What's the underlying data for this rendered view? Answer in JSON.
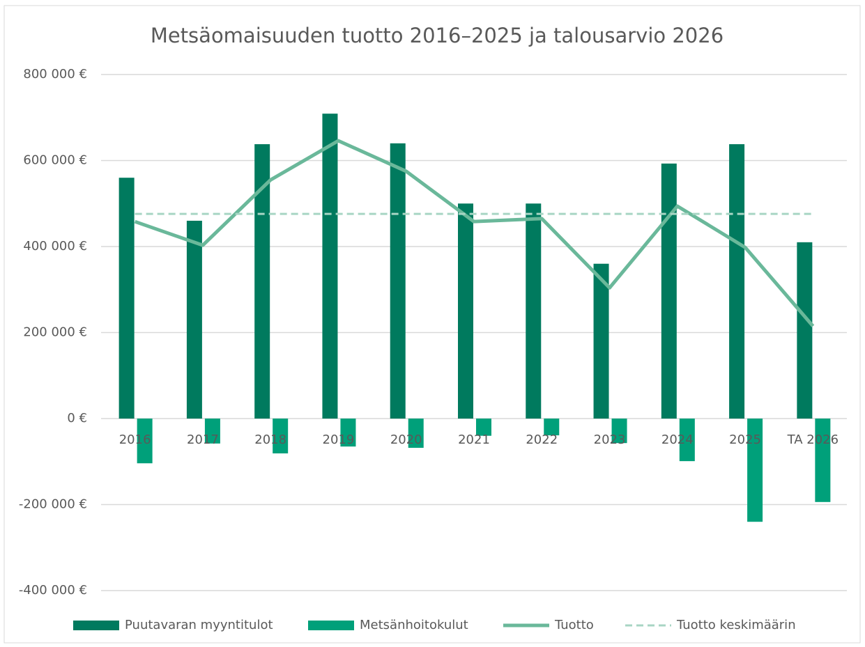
{
  "chart_data": {
    "type": "combo",
    "title": "Metsäomaisuuden tuotto 2016–2025 ja talousarvio 2026",
    "categories": [
      "2016",
      "2017",
      "2018",
      "2019",
      "2020",
      "2021",
      "2022",
      "2023",
      "2024",
      "2025",
      "TA 2026"
    ],
    "series": [
      {
        "name": "Puutavaran myyntitulot",
        "type": "bar",
        "color": "#007a5e",
        "values": [
          560000,
          460000,
          638000,
          709000,
          640000,
          500000,
          500000,
          360000,
          593000,
          638000,
          410000
        ]
      },
      {
        "name": "Metsänhoitokulut",
        "type": "bar",
        "color": "#00a07a",
        "values": [
          -104000,
          -58000,
          -81000,
          -65000,
          -68000,
          -40000,
          -39000,
          -57000,
          -99000,
          -240000,
          -194000
        ]
      },
      {
        "name": "Tuotto",
        "type": "line",
        "color": "#6ab89a",
        "values": [
          458000,
          403000,
          555000,
          646000,
          575000,
          458000,
          465000,
          304000,
          494000,
          398000,
          215000
        ]
      },
      {
        "name": "Tuotto keskimäärin",
        "type": "line",
        "dashed": true,
        "color": "#a8d5c4",
        "values": [
          476000,
          476000,
          476000,
          476000,
          476000,
          476000,
          476000,
          476000,
          476000,
          476000,
          476000
        ]
      }
    ],
    "ylim": [
      -400000,
      800000
    ],
    "yticks": [
      {
        "value": -400000,
        "label": "-400 000 €"
      },
      {
        "value": -200000,
        "label": "-200 000 €"
      },
      {
        "value": 0,
        "label": "0 €"
      },
      {
        "value": 200000,
        "label": "200 000 €"
      },
      {
        "value": 400000,
        "label": "400 000 €"
      },
      {
        "value": 600000,
        "label": "600 000 €"
      },
      {
        "value": 800000,
        "label": "800 000 €"
      }
    ],
    "grid": true,
    "legend": "bottom"
  }
}
